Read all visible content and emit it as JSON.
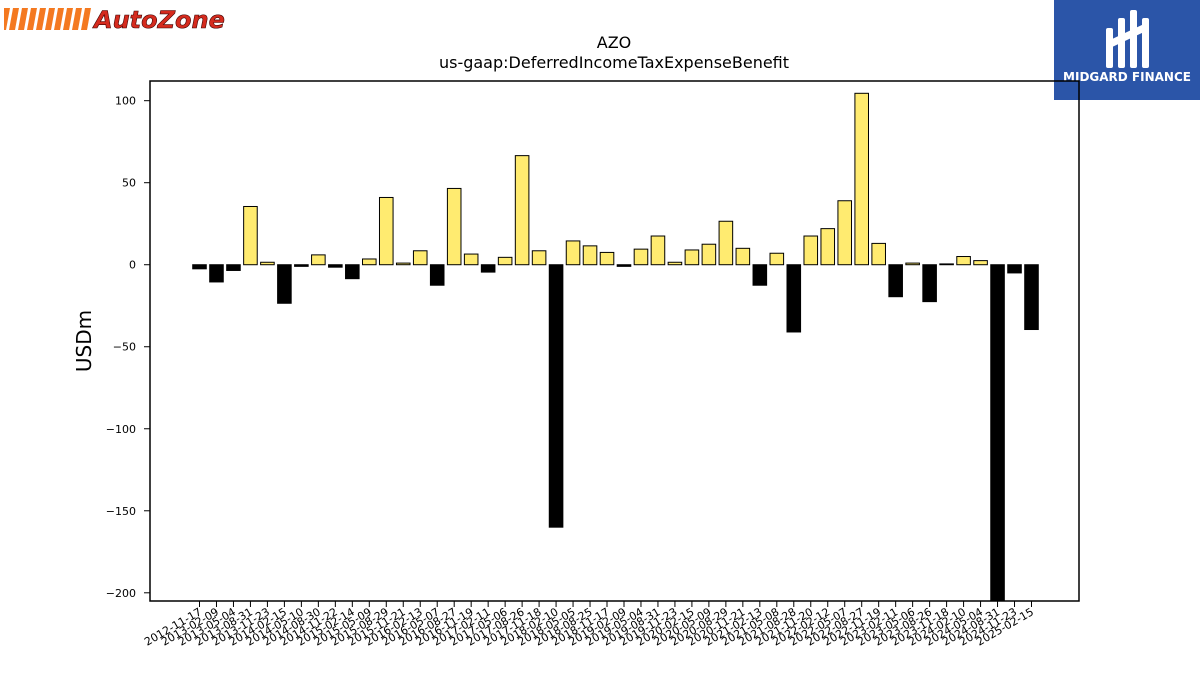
{
  "header": {
    "left_logo_text": "AutoZone",
    "right_logo_text": "MIDGARD FINANCE"
  },
  "colors": {
    "positive_bar": "#ffeb70",
    "negative_bar": "#000000",
    "autozone_orange": "#f47920",
    "autozone_red": "#d52b1e",
    "midgard_blue": "#2b55a8"
  },
  "chart_data": {
    "type": "bar",
    "title": "AZO",
    "subtitle": "us-gaap:DeferredIncomeTaxExpenseBenefit",
    "xlabel": "",
    "ylabel": "USDm",
    "ylim": [
      -205,
      112
    ],
    "yticks": [
      100,
      50,
      0,
      -50,
      -100,
      -150,
      -200
    ],
    "grid": false,
    "legend": "none",
    "categories": [
      "2012-11-17",
      "2013-02-09",
      "2013-05-04",
      "2013-08-31",
      "2013-11-23",
      "2014-02-15",
      "2014-05-10",
      "2014-08-30",
      "2014-11-22",
      "2015-02-14",
      "2015-05-09",
      "2015-08-29",
      "2015-11-21",
      "2016-02-13",
      "2016-05-07",
      "2016-08-27",
      "2016-11-19",
      "2017-02-11",
      "2017-05-06",
      "2017-08-26",
      "2017-11-18",
      "2018-02-10",
      "2018-05-05",
      "2018-08-25",
      "2018-11-17",
      "2019-02-09",
      "2019-05-04",
      "2019-08-31",
      "2019-11-23",
      "2020-02-15",
      "2020-05-09",
      "2020-08-29",
      "2020-11-21",
      "2021-02-13",
      "2021-05-08",
      "2021-08-28",
      "2021-11-20",
      "2022-02-12",
      "2022-05-07",
      "2022-08-27",
      "2022-11-19",
      "2023-02-11",
      "2023-05-06",
      "2023-08-26",
      "2023-11-18",
      "2024-02-10",
      "2024-05-04",
      "2024-08-31",
      "2024-11-23",
      "2025-02-15"
    ],
    "values": [
      -2.5,
      -10.5,
      -3.5,
      35.5,
      1.5,
      -23.5,
      -1,
      6,
      -1.5,
      -8.5,
      3.5,
      41,
      1,
      8.5,
      -12.5,
      46.5,
      6.5,
      -4.5,
      4.5,
      66.5,
      8.5,
      -160,
      14.5,
      11.5,
      7.5,
      -1,
      9.5,
      17.5,
      1.5,
      9,
      12.5,
      26.5,
      10,
      -12.5,
      7,
      -41,
      17.5,
      22,
      39,
      104.5,
      13,
      -19.5,
      1,
      -22.5,
      0.5,
      5,
      2.5,
      -205,
      -5,
      -39.5
    ]
  }
}
